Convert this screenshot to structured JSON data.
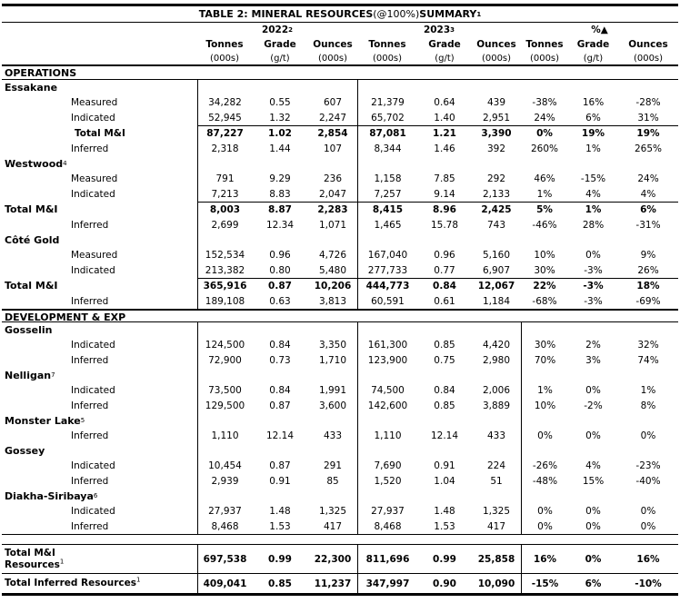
{
  "table": {
    "title": {
      "part1": "TABLE 2: MINERAL RESOURCES ",
      "part2": "(@100%)",
      "part3": " SUMMARY",
      "sup": "1"
    },
    "column_groups": [
      {
        "label": "2022",
        "sup": "2"
      },
      {
        "label": "2023",
        "sup": "3"
      },
      {
        "label": "%▲",
        "sup": ""
      }
    ],
    "sub_columns": [
      "Tonnes",
      "Grade",
      "Ounces",
      "Tonnes",
      "Grade",
      "Ounces",
      "Tonnes",
      "Grade",
      "Ounces"
    ],
    "units": [
      "(000s)",
      "(g/t)",
      "(000s)",
      "(000s)",
      "(g/t)",
      "(000s)",
      "(000s)",
      "(g/t)",
      "(000s)"
    ],
    "sections": [
      {
        "heading": "OPERATIONS",
        "percent_divider": false,
        "groups": [
          {
            "site": "Essakane",
            "sup": "",
            "rows": [
              {
                "label": "Measured",
                "style": "sub",
                "cells": [
                  "34,282",
                  "0.55",
                  "607",
                  "21,379",
                  "0.64",
                  "439",
                  "-38%",
                  "16%",
                  "-28%"
                ]
              },
              {
                "label": "Indicated",
                "style": "sub",
                "cells": [
                  "52,945",
                  "1.32",
                  "2,247",
                  "65,702",
                  "1.40",
                  "2,951",
                  "24%",
                  "6%",
                  "31%"
                ]
              },
              {
                "label": "Total M&I",
                "style": "total-indent",
                "cells": [
                  "87,227",
                  "1.02",
                  "2,854",
                  "87,081",
                  "1.21",
                  "3,390",
                  "0%",
                  "19%",
                  "19%"
                ]
              },
              {
                "label": "Inferred",
                "style": "sub",
                "cells": [
                  "2,318",
                  "1.44",
                  "107",
                  "8,344",
                  "1.46",
                  "392",
                  "260%",
                  "1%",
                  "265%"
                ]
              }
            ]
          },
          {
            "site": "Westwood",
            "sup": "4",
            "rows": [
              {
                "label": "Measured",
                "style": "sub",
                "cells": [
                  "791",
                  "9.29",
                  "236",
                  "1,158",
                  "7.85",
                  "292",
                  "46%",
                  "-15%",
                  "24%"
                ]
              },
              {
                "label": "Indicated",
                "style": "sub",
                "cells": [
                  "7,213",
                  "8.83",
                  "2,047",
                  "7,257",
                  "9.14",
                  "2,133",
                  "1%",
                  "4%",
                  "4%"
                ]
              },
              {
                "label": "Total M&I",
                "style": "total-left",
                "cells": [
                  "8,003",
                  "8.87",
                  "2,283",
                  "8,415",
                  "8.96",
                  "2,425",
                  "5%",
                  "1%",
                  "6%"
                ]
              },
              {
                "label": "Inferred",
                "style": "sub",
                "cells": [
                  "2,699",
                  "12.34",
                  "1,071",
                  "1,465",
                  "15.78",
                  "743",
                  "-46%",
                  "28%",
                  "-31%"
                ]
              }
            ]
          },
          {
            "site": "Côté Gold",
            "sup": "",
            "rows": [
              {
                "label": "Measured",
                "style": "sub",
                "cells": [
                  "152,534",
                  "0.96",
                  "4,726",
                  "167,040",
                  "0.96",
                  "5,160",
                  "10%",
                  "0%",
                  "9%"
                ]
              },
              {
                "label": "Indicated",
                "style": "sub",
                "cells": [
                  "213,382",
                  "0.80",
                  "5,480",
                  "277,733",
                  "0.77",
                  "6,907",
                  "30%",
                  "-3%",
                  "26%"
                ]
              },
              {
                "label": "Total M&I",
                "style": "total-left",
                "cells": [
                  "365,916",
                  "0.87",
                  "10,206",
                  "444,773",
                  "0.84",
                  "12,067",
                  "22%",
                  "-3%",
                  "18%"
                ]
              },
              {
                "label": "Inferred",
                "style": "sub",
                "cells": [
                  "189,108",
                  "0.63",
                  "3,813",
                  "60,591",
                  "0.61",
                  "1,184",
                  "-68%",
                  "-3%",
                  "-69%"
                ]
              }
            ]
          }
        ]
      },
      {
        "heading": "DEVELOPMENT & EXP",
        "percent_divider": true,
        "groups": [
          {
            "site": "Gosselin",
            "sup": "",
            "rows": [
              {
                "label": "Indicated",
                "style": "sub",
                "cells": [
                  "124,500",
                  "0.84",
                  "3,350",
                  "161,300",
                  "0.85",
                  "4,420",
                  "30%",
                  "2%",
                  "32%"
                ]
              },
              {
                "label": "Inferred",
                "style": "sub",
                "cells": [
                  "72,900",
                  "0.73",
                  "1,710",
                  "123,900",
                  "0.75",
                  "2,980",
                  "70%",
                  "3%",
                  "74%"
                ]
              }
            ]
          },
          {
            "site": "Nelligan",
            "sup": "7",
            "rows": [
              {
                "label": "Indicated",
                "style": "sub",
                "cells": [
                  "73,500",
                  "0.84",
                  "1,991",
                  "74,500",
                  "0.84",
                  "2,006",
                  "1%",
                  "0%",
                  "1%"
                ]
              },
              {
                "label": "Inferred",
                "style": "sub",
                "cells": [
                  "129,500",
                  "0.87",
                  "3,600",
                  "142,600",
                  "0.85",
                  "3,889",
                  "10%",
                  "-2%",
                  "8%"
                ]
              }
            ]
          },
          {
            "site": "Monster Lake",
            "sup": "5",
            "rows": [
              {
                "label": "Inferred",
                "style": "sub",
                "cells": [
                  "1,110",
                  "12.14",
                  "433",
                  "1,110",
                  "12.14",
                  "433",
                  "0%",
                  "0%",
                  "0%"
                ]
              }
            ]
          },
          {
            "site": "Gossey",
            "sup": "",
            "rows": [
              {
                "label": "Indicated",
                "style": "sub",
                "cells": [
                  "10,454",
                  "0.87",
                  "291",
                  "7,690",
                  "0.91",
                  "224",
                  "-26%",
                  "4%",
                  "-23%"
                ]
              },
              {
                "label": "Inferred",
                "style": "sub",
                "cells": [
                  "2,939",
                  "0.91",
                  "85",
                  "1,520",
                  "1.04",
                  "51",
                  "-48%",
                  "15%",
                  "-40%"
                ]
              }
            ]
          },
          {
            "site": "Diakha-Siribaya",
            "sup": "6",
            "rows": [
              {
                "label": "Indicated",
                "style": "sub",
                "cells": [
                  "27,937",
                  "1.48",
                  "1,325",
                  "27,937",
                  "1.48",
                  "1,325",
                  "0%",
                  "0%",
                  "0%"
                ]
              },
              {
                "label": "Inferred",
                "style": "sub",
                "cells": [
                  "8,468",
                  "1.53",
                  "417",
                  "8,468",
                  "1.53",
                  "417",
                  "0%",
                  "0%",
                  "0%"
                ]
              }
            ]
          }
        ]
      }
    ],
    "totals": [
      {
        "label_lines": [
          "Total M&I",
          "Resources"
        ],
        "sup": "1",
        "cells": [
          "697,538",
          "0.99",
          "22,300",
          "811,696",
          "0.99",
          "25,858",
          "16%",
          "0%",
          "16%"
        ]
      },
      {
        "label_lines": [
          "Total Inferred Resources"
        ],
        "sup": "1",
        "cells": [
          "409,041",
          "0.85",
          "11,237",
          "347,997",
          "0.90",
          "10,090",
          "-15%",
          "6%",
          "-10%"
        ]
      }
    ]
  }
}
